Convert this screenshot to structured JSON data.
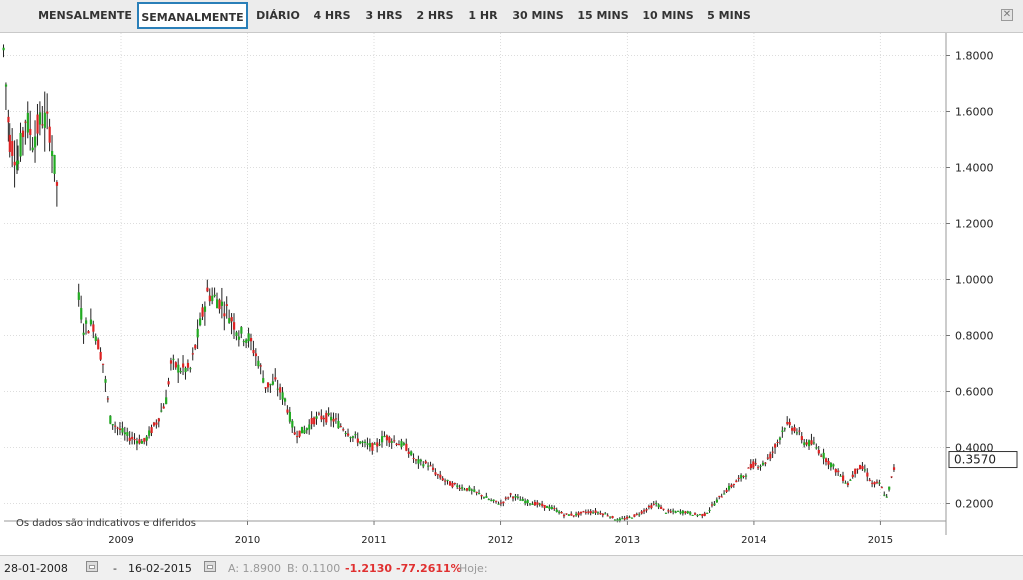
{
  "toolbar": {
    "tabs": [
      {
        "label": "MENSALMENTE",
        "active": false
      },
      {
        "label": "SEMANALMENTE",
        "active": true
      },
      {
        "label": "DIÁRIO",
        "active": false
      },
      {
        "label": "4 HRS",
        "active": false
      },
      {
        "label": "3 HRS",
        "active": false
      },
      {
        "label": "2 HRS",
        "active": false
      },
      {
        "label": "1 HR",
        "active": false
      },
      {
        "label": "30 MINS",
        "active": false
      },
      {
        "label": "15 MINS",
        "active": false
      },
      {
        "label": "10 MINS",
        "active": false
      },
      {
        "label": "5 MINS",
        "active": false
      }
    ],
    "close_icon": "close-icon"
  },
  "chart": {
    "disclaimer": "Os dados são indicativos e diferidos",
    "current_value": "0.3570"
  },
  "chart_data": {
    "type": "candlestick",
    "x_ticks": [
      "2009",
      "2010",
      "2011",
      "2012",
      "2013",
      "2014",
      "2015"
    ],
    "y_ticks": [
      "0.2000",
      "0.4000",
      "0.6000",
      "0.8000",
      "1.0000",
      "1.2000",
      "1.4000",
      "1.6000",
      "1.8000"
    ],
    "ylim": [
      0.1,
      1.9
    ],
    "grid": true,
    "up_color": "#22aa22",
    "down_color": "#dd2222",
    "current_value": 0.357,
    "close_points": [
      [
        "2008-01-28",
        1.82
      ],
      [
        "2008-02-15",
        1.5
      ],
      [
        "2008-03-10",
        1.42
      ],
      [
        "2008-03-31",
        1.58
      ],
      [
        "2008-04-21",
        1.5
      ],
      [
        "2008-05-19",
        1.58
      ],
      [
        "2008-06-09",
        1.54
      ],
      [
        "2008-06-23",
        1.4
      ],
      [
        "2008-07-07",
        1.28
      ],
      [
        "2008-09-01",
        0.93
      ],
      [
        "2008-09-15",
        0.83
      ],
      [
        "2008-10-13",
        0.84
      ],
      [
        "2008-11-10",
        0.7
      ],
      [
        "2008-12-01",
        0.5
      ],
      [
        "2008-12-22",
        0.47
      ],
      [
        "2009-01-19",
        0.44
      ],
      [
        "2009-02-09",
        0.43
      ],
      [
        "2009-03-09",
        0.42
      ],
      [
        "2009-04-13",
        0.49
      ],
      [
        "2009-05-11",
        0.57
      ],
      [
        "2009-05-25",
        0.7
      ],
      [
        "2009-06-22",
        0.68
      ],
      [
        "2009-07-20",
        0.68
      ],
      [
        "2009-08-17",
        0.84
      ],
      [
        "2009-09-07",
        0.95
      ],
      [
        "2009-10-05",
        0.93
      ],
      [
        "2009-11-02",
        0.89
      ],
      [
        "2009-12-07",
        0.81
      ],
      [
        "2010-01-04",
        0.79
      ],
      [
        "2010-02-01",
        0.71
      ],
      [
        "2010-02-22",
        0.62
      ],
      [
        "2010-03-22",
        0.63
      ],
      [
        "2010-04-19",
        0.57
      ],
      [
        "2010-05-17",
        0.45
      ],
      [
        "2010-06-14",
        0.46
      ],
      [
        "2010-07-12",
        0.5
      ],
      [
        "2010-08-09",
        0.51
      ],
      [
        "2010-09-06",
        0.5
      ],
      [
        "2010-10-04",
        0.47
      ],
      [
        "2010-11-01",
        0.44
      ],
      [
        "2010-12-06",
        0.41
      ],
      [
        "2011-01-03",
        0.4
      ],
      [
        "2011-01-31",
        0.44
      ],
      [
        "2011-03-07",
        0.42
      ],
      [
        "2011-04-04",
        0.4
      ],
      [
        "2011-05-02",
        0.35
      ],
      [
        "2011-06-06",
        0.34
      ],
      [
        "2011-07-04",
        0.3
      ],
      [
        "2011-08-08",
        0.27
      ],
      [
        "2011-09-05",
        0.26
      ],
      [
        "2011-10-03",
        0.25
      ],
      [
        "2011-11-07",
        0.23
      ],
      [
        "2011-12-05",
        0.21
      ],
      [
        "2012-01-02",
        0.2
      ],
      [
        "2012-01-30",
        0.23
      ],
      [
        "2012-03-05",
        0.21
      ],
      [
        "2012-04-09",
        0.2
      ],
      [
        "2012-05-07",
        0.19
      ],
      [
        "2012-06-04",
        0.18
      ],
      [
        "2012-07-02",
        0.16
      ],
      [
        "2012-08-06",
        0.16
      ],
      [
        "2012-09-03",
        0.17
      ],
      [
        "2012-10-01",
        0.17
      ],
      [
        "2012-11-05",
        0.16
      ],
      [
        "2012-12-03",
        0.14
      ],
      [
        "2013-01-07",
        0.15
      ],
      [
        "2013-01-28",
        0.16
      ],
      [
        "2013-02-25",
        0.18
      ],
      [
        "2013-03-25",
        0.2
      ],
      [
        "2013-04-22",
        0.17
      ],
      [
        "2013-05-20",
        0.17
      ],
      [
        "2013-06-17",
        0.17
      ],
      [
        "2013-07-15",
        0.16
      ],
      [
        "2013-08-12",
        0.16
      ],
      [
        "2013-09-09",
        0.2
      ],
      [
        "2013-10-07",
        0.24
      ],
      [
        "2013-11-04",
        0.27
      ],
      [
        "2013-12-02",
        0.3
      ],
      [
        "2013-12-30",
        0.34
      ],
      [
        "2014-01-27",
        0.34
      ],
      [
        "2014-02-17",
        0.37
      ],
      [
        "2014-03-10",
        0.42
      ],
      [
        "2014-03-31",
        0.48
      ],
      [
        "2014-04-28",
        0.47
      ],
      [
        "2014-05-26",
        0.42
      ],
      [
        "2014-06-23",
        0.41
      ],
      [
        "2014-07-21",
        0.37
      ],
      [
        "2014-08-18",
        0.33
      ],
      [
        "2014-09-08",
        0.3
      ],
      [
        "2014-09-29",
        0.27
      ],
      [
        "2014-10-27",
        0.33
      ],
      [
        "2014-11-17",
        0.32
      ],
      [
        "2014-12-08",
        0.27
      ],
      [
        "2014-12-29",
        0.27
      ],
      [
        "2015-01-19",
        0.22
      ],
      [
        "2015-02-02",
        0.29
      ],
      [
        "2015-02-16",
        0.357
      ]
    ]
  },
  "status": {
    "start_date": "28-01-2008",
    "separator": "-",
    "end_date": "16-02-2015",
    "a_label": "A: 1.8900",
    "b_label": "B: 0.1100",
    "change": "-1.2130",
    "change_pct": "-77.2611%",
    "today_label": "Hoje:"
  }
}
